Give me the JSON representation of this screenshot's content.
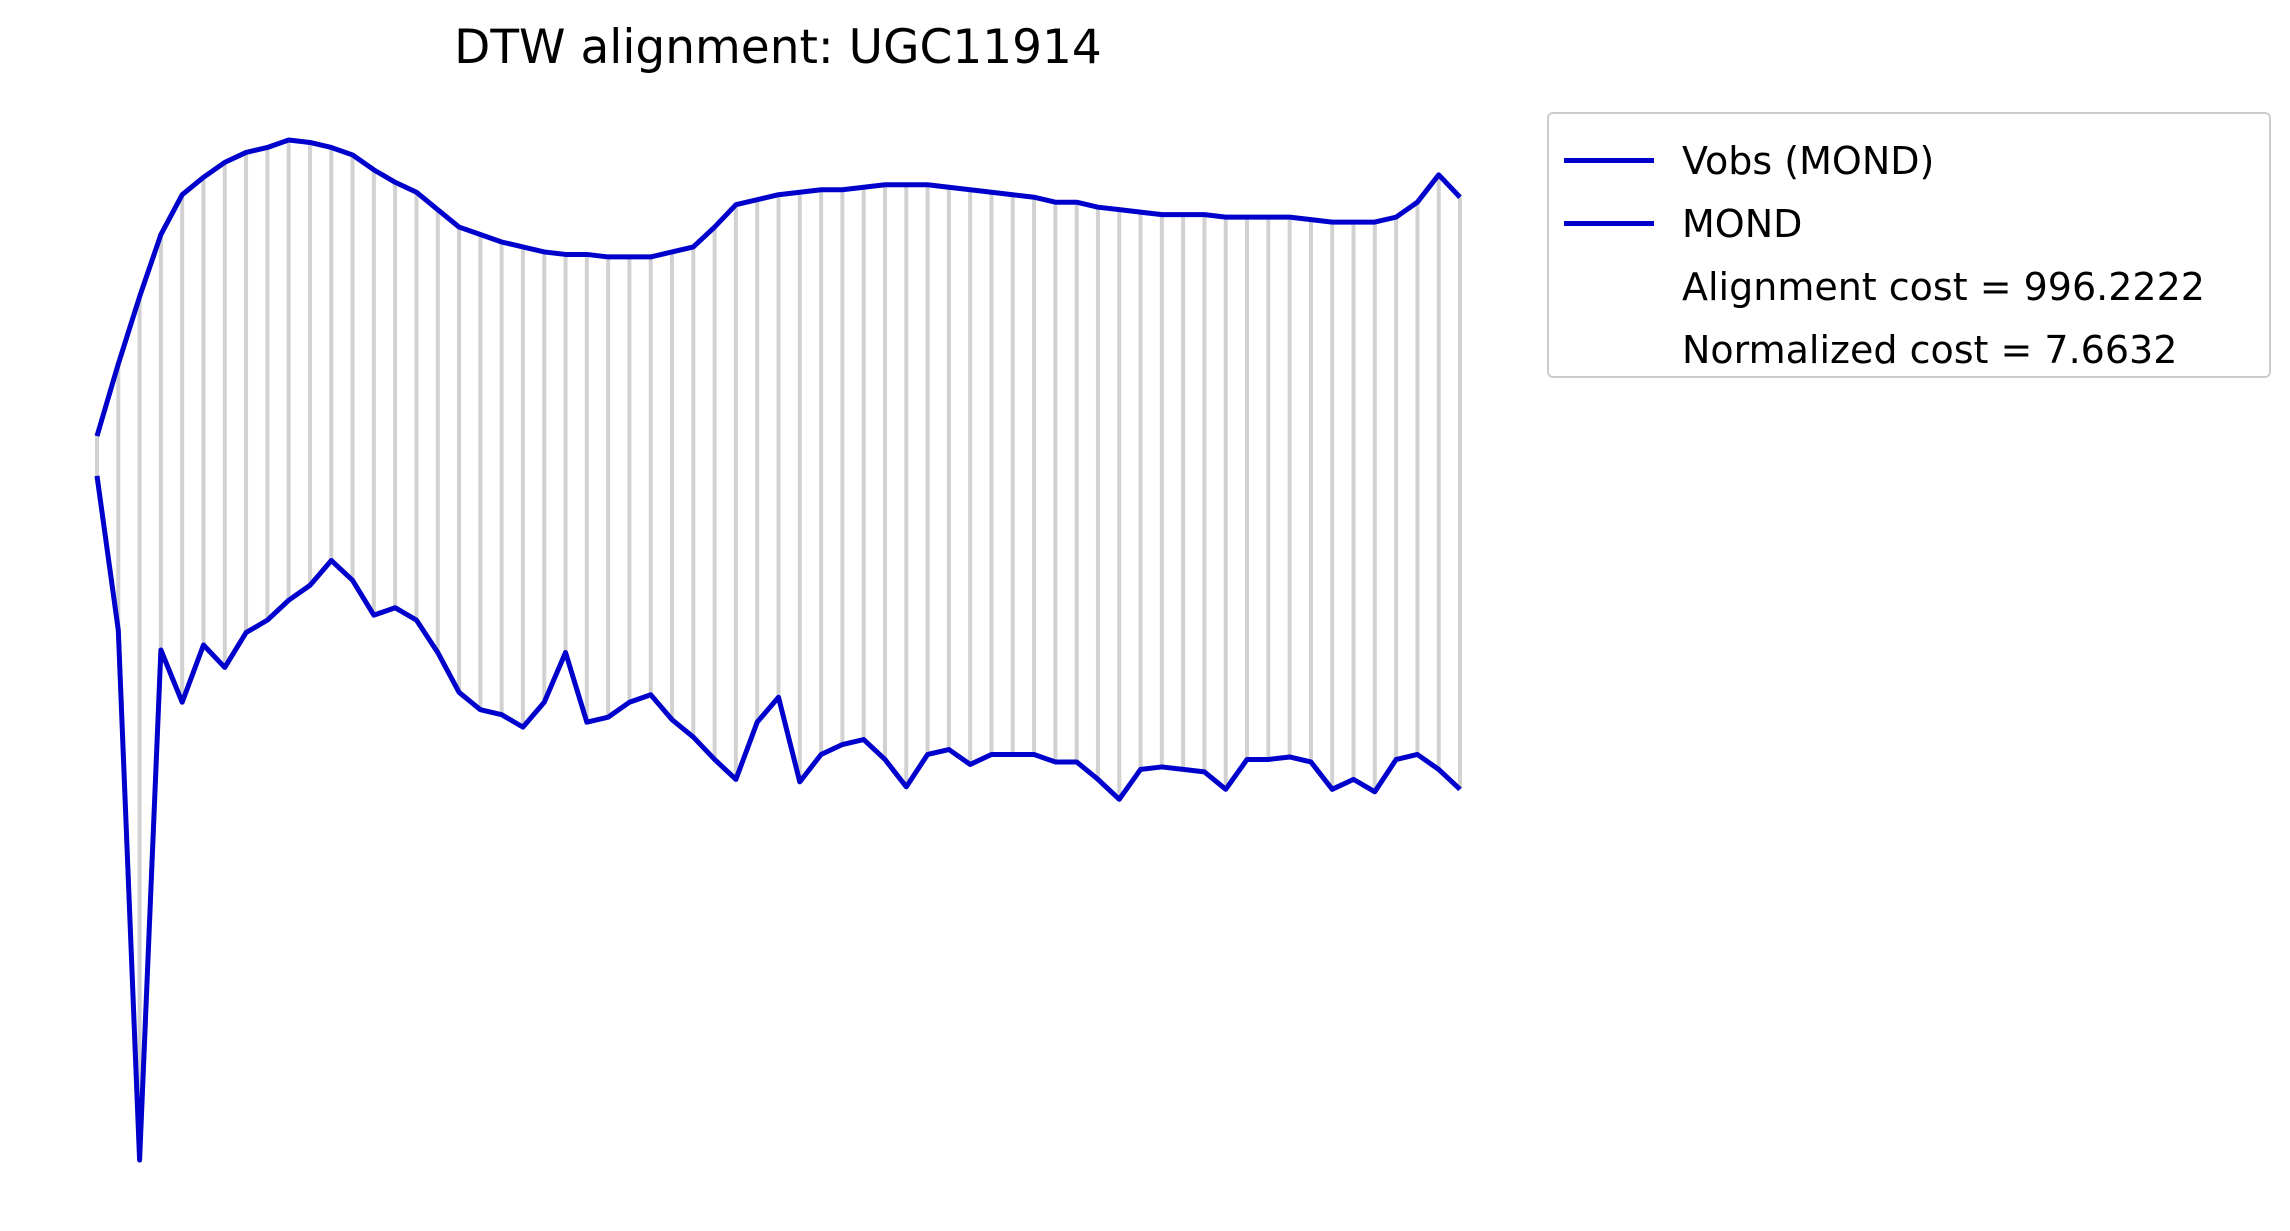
{
  "chart_data": {
    "type": "line",
    "title": "DTW alignment: UGC11914",
    "xlabel": "",
    "ylabel": "",
    "grid": false,
    "axes_visible": false,
    "legend_placement": "outside upper right",
    "line_color": "#0000cc",
    "connector_color": "#999999",
    "series": [
      {
        "name": "Vobs (MOND)",
        "x": [
          0,
          1,
          2,
          3,
          4,
          5,
          6,
          7,
          8,
          9,
          10,
          11,
          12,
          13,
          14,
          15,
          16,
          17,
          18,
          19,
          20,
          21,
          22,
          23,
          24,
          25,
          26,
          27,
          28,
          29,
          30,
          31,
          32,
          33,
          34,
          35,
          36,
          37,
          38,
          39,
          40,
          41,
          42,
          43,
          44,
          45,
          46,
          47,
          48,
          49,
          50,
          51,
          52,
          53,
          54,
          55,
          56,
          57,
          58,
          59,
          60,
          61,
          62,
          63,
          64
        ],
        "values": [
          1.51,
          1.8,
          2.07,
          2.32,
          2.48,
          2.55,
          2.61,
          2.65,
          2.67,
          2.7,
          2.69,
          2.67,
          2.64,
          2.58,
          2.53,
          2.49,
          2.42,
          2.35,
          2.32,
          2.29,
          2.27,
          2.25,
          2.24,
          2.24,
          2.23,
          2.23,
          2.23,
          2.25,
          2.27,
          2.35,
          2.44,
          2.46,
          2.48,
          2.49,
          2.5,
          2.5,
          2.51,
          2.52,
          2.52,
          2.52,
          2.51,
          2.5,
          2.49,
          2.48,
          2.47,
          2.45,
          2.45,
          2.43,
          2.42,
          2.41,
          2.4,
          2.4,
          2.4,
          2.39,
          2.39,
          2.39,
          2.39,
          2.38,
          2.37,
          2.37,
          2.37,
          2.39,
          2.45,
          2.56,
          2.47
        ]
      },
      {
        "name": "MOND",
        "x": [
          0,
          1,
          2,
          3,
          4,
          5,
          6,
          7,
          8,
          9,
          10,
          11,
          12,
          13,
          14,
          15,
          16,
          17,
          18,
          19,
          20,
          21,
          22,
          23,
          24,
          25,
          26,
          27,
          28,
          29,
          30,
          31,
          32,
          33,
          34,
          35,
          36,
          37,
          38,
          39,
          40,
          41,
          42,
          43,
          44,
          45,
          46,
          47,
          48,
          49,
          50,
          51,
          52,
          53,
          54,
          55,
          56,
          57,
          58,
          59,
          60,
          61,
          62,
          63,
          64
        ],
        "values": [
          1.35,
          0.73,
          -1.4,
          0.65,
          0.44,
          0.67,
          0.58,
          0.72,
          0.77,
          0.85,
          0.91,
          1.01,
          0.93,
          0.79,
          0.82,
          0.77,
          0.64,
          0.48,
          0.41,
          0.39,
          0.34,
          0.44,
          0.64,
          0.36,
          0.38,
          0.44,
          0.47,
          0.37,
          0.3,
          0.21,
          0.13,
          0.36,
          0.46,
          0.12,
          0.23,
          0.27,
          0.29,
          0.21,
          0.1,
          0.23,
          0.25,
          0.19,
          0.23,
          0.23,
          0.23,
          0.2,
          0.2,
          0.13,
          0.05,
          0.17,
          0.18,
          0.17,
          0.16,
          0.09,
          0.21,
          0.21,
          0.22,
          0.2,
          0.09,
          0.13,
          0.08,
          0.21,
          0.23,
          0.17,
          0.09
        ]
      }
    ],
    "annotations": [
      "Alignment cost = 996.2222",
      "Normalized cost = 7.6632"
    ]
  },
  "legend": {
    "entry_1": "Vobs (MOND)",
    "entry_2": "MOND",
    "entry_3": "Alignment cost = 996.2222",
    "entry_4": "Normalized cost = 7.6632"
  }
}
